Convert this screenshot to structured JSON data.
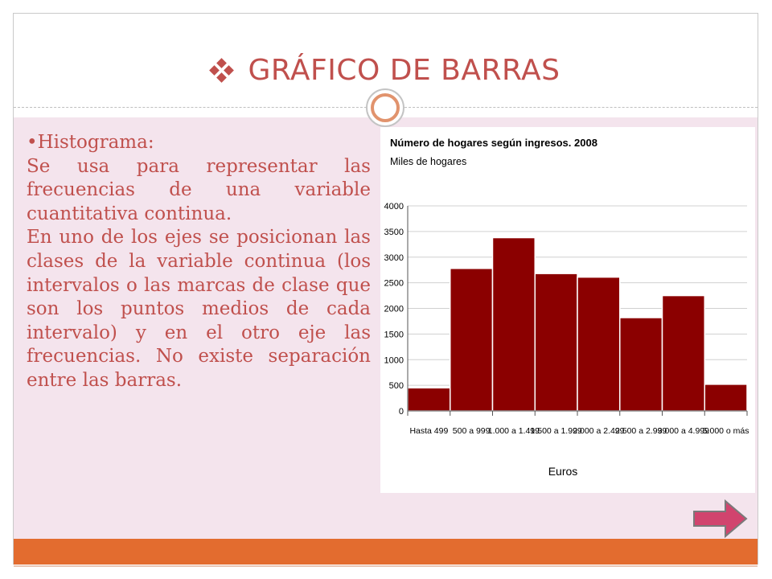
{
  "slide": {
    "title": "GRÁFICO DE BARRAS",
    "heading": "•Histograma:",
    "paragraph1": "Se usa para representar las frecuencias de una variable cuantitativa continua.",
    "paragraph2": "En uno de los ejes se posicionan las clases de la variable continua (los intervalos o las marcas de clase que son los puntos medios de cada intervalo) y en el otro eje las frecuencias. No existe separación entre las barras.",
    "title_icon": "diamond-bullet-icon",
    "next_icon": "right-arrow-icon"
  },
  "colors": {
    "accent": "#c0504d",
    "body_background": "#f4e4ed",
    "footer": "#e36c2f",
    "bar_fill": "#8b0000",
    "next_button": "#d1446e"
  },
  "chart_data": {
    "type": "bar",
    "title": "Número de hogares según ingresos. 2008",
    "subtitle": "Miles de hogares",
    "xlabel": "Euros",
    "ylabel": "",
    "categories": [
      "Hasta 499",
      "500 a 999",
      "1.000 a 1.499",
      "1.500 a 1.999",
      "2.000 a 2.499",
      "2.500 a 2.999",
      "3.000 a 4.999",
      "5.000 o más"
    ],
    "values": [
      450,
      2780,
      3380,
      2680,
      2610,
      1820,
      2250,
      520
    ],
    "ylim": [
      0,
      4000
    ],
    "yticks": [
      0,
      500,
      1000,
      1500,
      2000,
      2500,
      3000,
      3500,
      4000
    ],
    "grid": true,
    "legend": "none"
  }
}
